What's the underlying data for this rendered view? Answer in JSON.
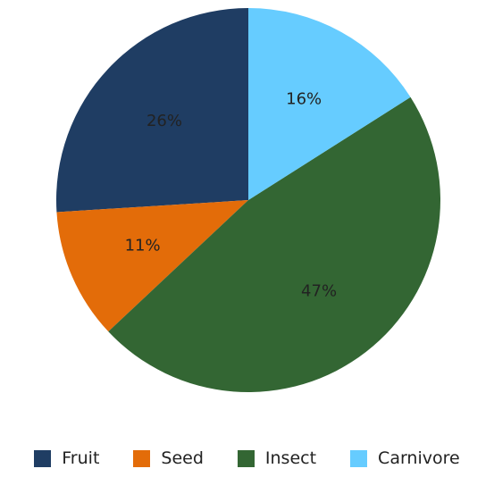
{
  "chart_data": {
    "type": "pie",
    "categories": [
      "Fruit",
      "Seed",
      "Insect",
      "Carnivore"
    ],
    "values": [
      26,
      11,
      47,
      16
    ],
    "value_labels": [
      "26%",
      "11%",
      "47%",
      "16%"
    ],
    "colors": [
      "#1f3d63",
      "#e36c09",
      "#336633",
      "#66ccff"
    ],
    "start_angle_deg": 90,
    "direction": "counterclockwise",
    "legend_position": "bottom",
    "title": "",
    "xlabel": "",
    "ylabel": ""
  }
}
